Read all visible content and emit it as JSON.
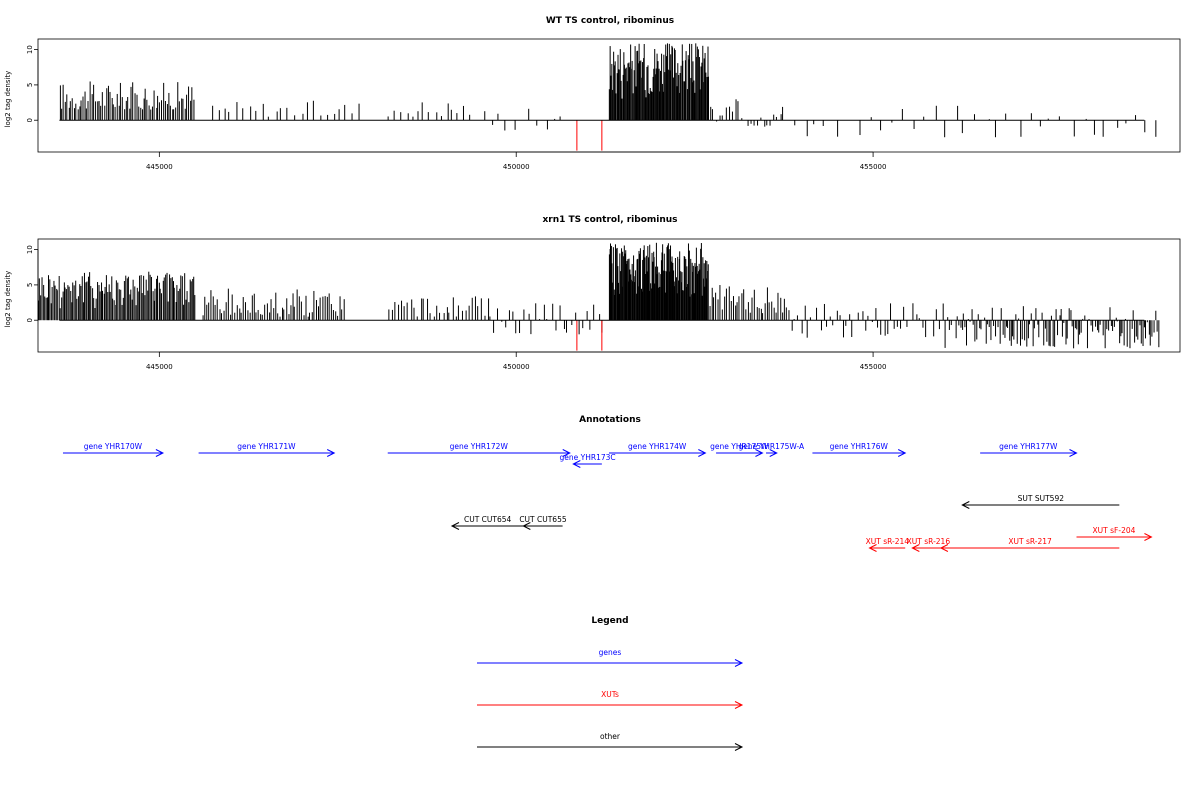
{
  "colors": {
    "black": "#000000",
    "blue": "#0000ff",
    "red": "#ff0000",
    "frame": "#000000"
  },
  "chart_data": [
    {
      "type": "bar",
      "title": "WT TS control, ribominus",
      "ylabel": "log2 tag density",
      "xlim": [
        443300,
        459300
      ],
      "ylim": [
        -4.5,
        11.5
      ],
      "x_ticks": [
        "445000",
        "450000",
        "455000"
      ],
      "y_ticks": [
        "0",
        "5",
        "10"
      ],
      "series": [
        {
          "values_desc": null,
          "color": "#000000"
        }
      ],
      "density_profile": [
        {
          "start": 443600,
          "end": 445500,
          "min": 1.5,
          "max": 5.5,
          "step": 25
        },
        {
          "start": 445700,
          "end": 447800,
          "min": 0.5,
          "max": 2.8,
          "step": 90
        },
        {
          "start": 448200,
          "end": 449400,
          "min": 0.5,
          "max": 3.0,
          "step": 80
        },
        {
          "start": 449500,
          "end": 450750,
          "min": -1.5,
          "max": 2.0,
          "step": 110
        },
        {
          "start": 451300,
          "end": 452700,
          "min": 3.0,
          "max": 11.0,
          "step": 12
        },
        {
          "start": 452700,
          "end": 453700,
          "min": -1.0,
          "max": 3.0,
          "step": 45
        },
        {
          "start": 453700,
          "end": 459000,
          "min": -2.5,
          "max": 2.5,
          "step": 150
        }
      ],
      "red_bars": [
        {
          "x": 450850,
          "y": -4.3
        },
        {
          "x": 451200,
          "y": -4.3
        }
      ]
    },
    {
      "type": "bar",
      "title": "xrn1 TS control, ribominus",
      "ylabel": "log2 tag density",
      "xlim": [
        443300,
        459300
      ],
      "ylim": [
        -4.5,
        11.5
      ],
      "x_ticks": [
        "445000",
        "450000",
        "455000"
      ],
      "y_ticks": [
        "0",
        "5",
        "10"
      ],
      "series": [
        {
          "values_desc": null,
          "color": "#000000"
        }
      ],
      "density_profile": [
        {
          "start": 443300,
          "end": 445500,
          "min": 1.5,
          "max": 7.0,
          "step": 18
        },
        {
          "start": 445600,
          "end": 447600,
          "min": 0.5,
          "max": 4.5,
          "step": 30
        },
        {
          "start": 448200,
          "end": 449600,
          "min": 0.5,
          "max": 3.5,
          "step": 45
        },
        {
          "start": 449600,
          "end": 451200,
          "min": -2.0,
          "max": 2.5,
          "step": 55
        },
        {
          "start": 451300,
          "end": 452700,
          "min": 3.0,
          "max": 11.0,
          "step": 10
        },
        {
          "start": 452700,
          "end": 453800,
          "min": 1.0,
          "max": 5.0,
          "step": 30
        },
        {
          "start": 453800,
          "end": 456000,
          "min": -2.5,
          "max": 2.5,
          "step": 45
        },
        {
          "start": 456000,
          "end": 459000,
          "min": -4.0,
          "max": 2.0,
          "step": 22
        }
      ],
      "red_bars": [
        {
          "x": 450850,
          "y": -4.3
        },
        {
          "x": 451200,
          "y": -4.3
        }
      ]
    }
  ],
  "annotations": {
    "title": "Annotations",
    "features": [
      {
        "label": "gene YHR170W",
        "start": 443650,
        "end": 445050,
        "row": 0,
        "strand": "+",
        "kind": "gene"
      },
      {
        "label": "gene YHR171W",
        "start": 445550,
        "end": 447450,
        "row": 0,
        "strand": "+",
        "kind": "gene"
      },
      {
        "label": "gene YHR172W",
        "start": 448200,
        "end": 450750,
        "row": 0,
        "strand": "+",
        "kind": "gene"
      },
      {
        "label": "gene YHR173C",
        "start": 450800,
        "end": 451200,
        "row": 1,
        "strand": "-",
        "kind": "gene"
      },
      {
        "label": "gene YHR174W",
        "start": 451300,
        "end": 452650,
        "row": 0,
        "strand": "+",
        "kind": "gene"
      },
      {
        "label": "gene YHR175W",
        "start": 452800,
        "end": 453450,
        "row": 0,
        "strand": "+",
        "kind": "gene"
      },
      {
        "label": "gene YHR175W-A",
        "start": 453500,
        "end": 453650,
        "row": 0,
        "strand": "+",
        "kind": "gene"
      },
      {
        "label": "gene YHR176W",
        "start": 454150,
        "end": 455450,
        "row": 0,
        "strand": "+",
        "kind": "gene"
      },
      {
        "label": "gene YHR177W",
        "start": 456500,
        "end": 457850,
        "row": 0,
        "strand": "+",
        "kind": "gene"
      },
      {
        "label": "SUT SUT592",
        "start": 456250,
        "end": 458450,
        "row": 2,
        "strand": "-",
        "kind": "other"
      },
      {
        "label": "CUT CUT654",
        "start": 449100,
        "end": 450100,
        "row": 3,
        "strand": "-",
        "kind": "other"
      },
      {
        "label": "CUT CUT655",
        "start": 450100,
        "end": 450650,
        "row": 3,
        "strand": "-",
        "kind": "other"
      },
      {
        "label": "XUT sF-204",
        "start": 457850,
        "end": 458900,
        "row": 4,
        "strand": "+",
        "kind": "xut"
      },
      {
        "label": "XUT sR-214",
        "start": 454950,
        "end": 455450,
        "row": 5,
        "strand": "-",
        "kind": "xut"
      },
      {
        "label": "XUT sR-216",
        "start": 455550,
        "end": 456000,
        "row": 5,
        "strand": "-",
        "kind": "xut"
      },
      {
        "label": "XUT sR-217",
        "start": 455950,
        "end": 458450,
        "row": 5,
        "strand": "-",
        "kind": "xut"
      }
    ]
  },
  "legend": {
    "title": "Legend",
    "items": [
      {
        "label": "genes",
        "kind": "gene"
      },
      {
        "label": "XUTs",
        "kind": "xut"
      },
      {
        "label": "other",
        "kind": "other"
      }
    ]
  }
}
